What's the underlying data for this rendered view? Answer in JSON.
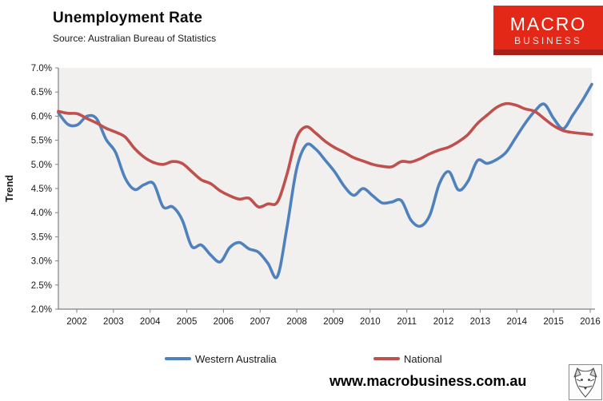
{
  "header": {
    "title": "Unemployment Rate",
    "source": "Source: Australian Bureau of Statistics"
  },
  "logo": {
    "line1": "MACRO",
    "line2": "BUSINESS",
    "bg_color": "#e42817",
    "strip_color": "#a92019"
  },
  "footer": {
    "url": "www.macrobusiness.com.au",
    "wolf_icon": "wolf-sketch-icon"
  },
  "chart_data": {
    "type": "line",
    "title": "Unemployment Rate",
    "xlabel": "",
    "ylabel": "Trend",
    "ylim": [
      2.0,
      7.0
    ],
    "ytick_step": 0.5,
    "ytick_suffix": "%",
    "grid": false,
    "plot_bg": "#f1f0ee",
    "axis_color": "#808080",
    "legend_position": "bottom",
    "x_axis_labels": [
      "2002",
      "2003",
      "2004",
      "2005",
      "2006",
      "2007",
      "2008",
      "2009",
      "2010",
      "2011",
      "2012",
      "2013",
      "2014",
      "2015",
      "2016"
    ],
    "x": [
      2002.0,
      2002.25,
      2002.5,
      2002.75,
      2003.0,
      2003.25,
      2003.5,
      2003.75,
      2004.0,
      2004.25,
      2004.5,
      2004.75,
      2005.0,
      2005.25,
      2005.5,
      2005.75,
      2006.0,
      2006.25,
      2006.5,
      2006.75,
      2007.0,
      2007.25,
      2007.5,
      2007.75,
      2008.0,
      2008.25,
      2008.5,
      2008.75,
      2009.0,
      2009.25,
      2009.5,
      2009.75,
      2010.0,
      2010.25,
      2010.5,
      2010.75,
      2011.0,
      2011.25,
      2011.5,
      2011.75,
      2012.0,
      2012.25,
      2012.5,
      2012.75,
      2013.0,
      2013.25,
      2013.5,
      2013.75,
      2014.0,
      2014.25,
      2014.5,
      2014.75,
      2015.0,
      2015.25,
      2015.5,
      2015.75,
      2016.0
    ],
    "series": [
      {
        "name": "Western Australia",
        "color": "#4f81bd",
        "values": [
          6.07,
          5.83,
          5.82,
          6.0,
          5.95,
          5.52,
          5.25,
          4.72,
          4.48,
          4.58,
          4.6,
          4.12,
          4.12,
          3.85,
          3.3,
          3.33,
          3.12,
          2.98,
          3.28,
          3.38,
          3.25,
          3.18,
          2.95,
          2.68,
          3.7,
          4.9,
          5.4,
          5.32,
          5.09,
          4.85,
          4.55,
          4.36,
          4.5,
          4.35,
          4.2,
          4.22,
          4.25,
          3.85,
          3.72,
          3.95,
          4.6,
          4.85,
          4.47,
          4.65,
          5.08,
          5.02,
          5.1,
          5.25,
          5.55,
          5.85,
          6.1,
          6.25,
          5.95,
          5.74,
          6.02,
          6.32,
          6.66
        ]
      },
      {
        "name": "National",
        "color": "#c0504d",
        "values": [
          6.1,
          6.06,
          6.05,
          5.95,
          5.86,
          5.75,
          5.67,
          5.57,
          5.33,
          5.15,
          5.04,
          5.0,
          5.06,
          5.02,
          4.85,
          4.68,
          4.6,
          4.45,
          4.35,
          4.28,
          4.3,
          4.12,
          4.18,
          4.22,
          4.8,
          5.55,
          5.78,
          5.65,
          5.48,
          5.35,
          5.25,
          5.14,
          5.07,
          5.0,
          4.96,
          4.95,
          5.06,
          5.05,
          5.12,
          5.22,
          5.3,
          5.36,
          5.47,
          5.62,
          5.85,
          6.02,
          6.18,
          6.26,
          6.23,
          6.15,
          6.1,
          5.95,
          5.8,
          5.7,
          5.66,
          5.64,
          5.62
        ]
      }
    ]
  }
}
